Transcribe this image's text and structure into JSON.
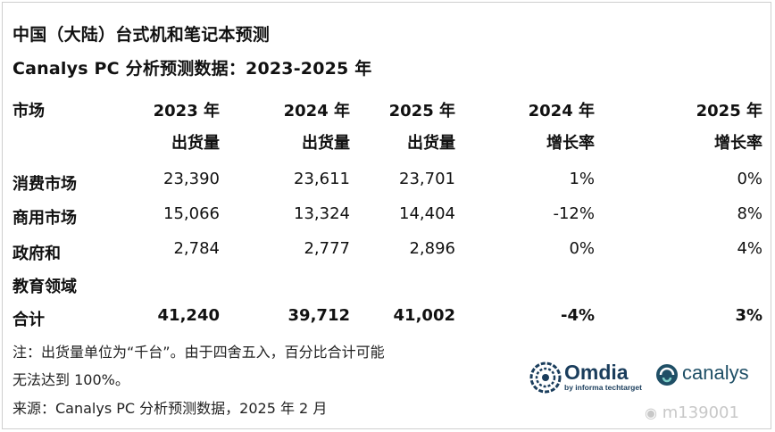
{
  "title_line1": "中国（大陆）台式机和笔记本预测",
  "title_line2": "Canalys PC 分析预测数据：2023-2025 年",
  "table": {
    "headers": [
      {
        "line1": "市场",
        "line2": ""
      },
      {
        "line1": "2023 年",
        "line2": "出货量"
      },
      {
        "line1": "2024 年",
        "line2": "出货量"
      },
      {
        "line1": "2025 年",
        "line2": "出货量"
      },
      {
        "line1": "2024 年",
        "line2": "增长率"
      },
      {
        "line1": "2025 年",
        "line2": "增长率"
      }
    ],
    "rows": [
      {
        "market": "消费市场",
        "market2": "",
        "y2023": "23,390",
        "y2024": "23,611",
        "y2025": "23,701",
        "g2024": "1%",
        "g2025": "0%"
      },
      {
        "market": "商用市场",
        "market2": "",
        "y2023": "15,066",
        "y2024": "13,324",
        "y2025": "14,404",
        "g2024": "-12%",
        "g2025": "8%"
      },
      {
        "market": "政府和",
        "market2": "教育领域",
        "y2023": "2,784",
        "y2024": "2,777",
        "y2025": "2,896",
        "g2024": "0%",
        "g2025": "4%"
      }
    ],
    "total": {
      "market": "合计",
      "y2023": "41,240",
      "y2024": "39,712",
      "y2025": "41,002",
      "g2024": "-4%",
      "g2025": "3%"
    }
  },
  "notes": {
    "line1": "注：出货量单位为“千台”。由于四舍五入，百分比合计可能",
    "line2": "无法达到 100%。",
    "source": "来源：Canalys PC 分析预测数据，2025 年 2 月"
  },
  "logos": {
    "omdia_name": "Omdia",
    "omdia_sub": "by informa techtarget",
    "canalys_name": "canalys",
    "omdia_color": "#1a3d5c",
    "canalys_color": "#1f4f66",
    "canalys_accent": "#2a8a8a"
  },
  "watermark": "m139001"
}
